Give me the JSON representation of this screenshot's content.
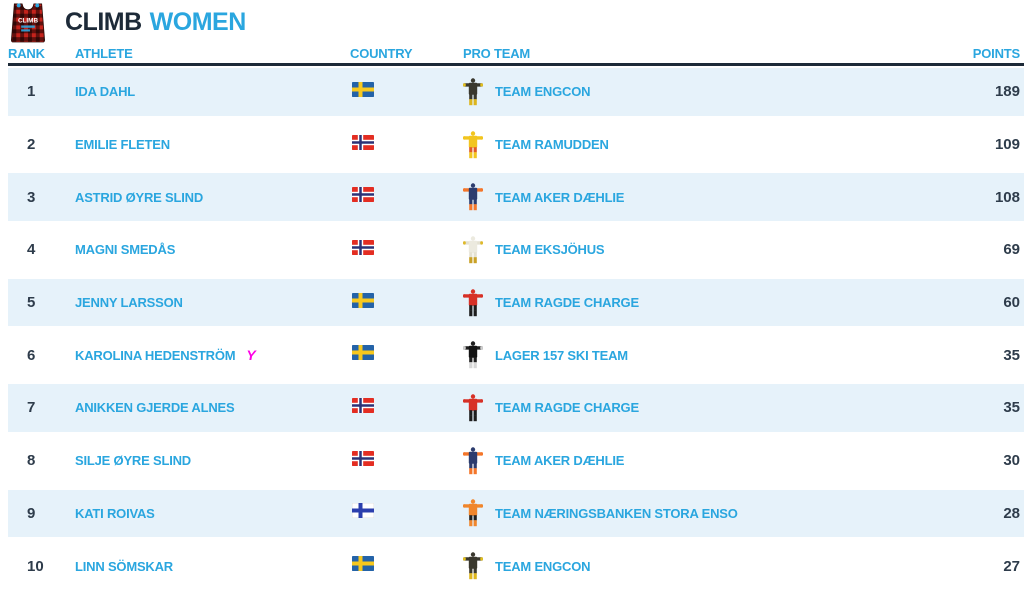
{
  "header": {
    "title_primary": "CLIMB",
    "title_secondary": "WOMEN",
    "bib_text": "CLIMB"
  },
  "columns": {
    "rank": "RANK",
    "athlete": "ATHLETE",
    "country": "COUNTRY",
    "pro_team": "PRO TEAM",
    "points": "POINTS"
  },
  "colors": {
    "accent_blue": "#2aa6df",
    "dark_navy": "#1d2a38",
    "number_slate": "#2e3c4b",
    "row_alt_bg": "#e6f2fa",
    "youth_marker_pink": "#ff00e6",
    "bib_plaid_red": "#c6231c"
  },
  "flags": {
    "SWE": {
      "bg": "#2463a8",
      "cross": "#f7c81e"
    },
    "NOR": {
      "bg": "#e32d22",
      "cross": "#ffffff",
      "inner": "#2b3277"
    },
    "FIN": {
      "bg": "#ffffff",
      "cross": "#2b3fae",
      "border": "#e3e3e3"
    }
  },
  "rows": [
    {
      "rank": "1",
      "athlete": "IDA DAHL",
      "country": "SWE",
      "team": "TEAM ENGCON",
      "points": "189",
      "suit": {
        "head": "#3a382e",
        "arms": "#3a382e",
        "hands": "#e3c01f",
        "torso": "#3a382e",
        "hips": "#3a382e",
        "legs": "#dcb51d"
      }
    },
    {
      "rank": "2",
      "athlete": "EMILIE FLETEN",
      "country": "NOR",
      "team": "TEAM RAMUDDEN",
      "points": "109",
      "suit": {
        "head": "#f2c51f",
        "arms": "#f2c51f",
        "hands": "#f2c51f",
        "torso": "#f2c51f",
        "hips": "#e05a26",
        "legs": "#f2c51f"
      }
    },
    {
      "rank": "3",
      "athlete": "ASTRID ØYRE SLIND",
      "country": "NOR",
      "team": "TEAM AKER DÆHLIE",
      "points": "108",
      "suit": {
        "head": "#2c3c6e",
        "arms": "#f4762a",
        "hands": "#f4762a",
        "torso": "#2c3c6e",
        "hips": "#2c3c6e",
        "legs": "#f4762a"
      }
    },
    {
      "rank": "4",
      "athlete": "MAGNI SMEDÅS",
      "country": "NOR",
      "team": "TEAM EKSJÖHUS",
      "points": "69",
      "suit": {
        "head": "#eceadf",
        "arms": "#e4e1d2",
        "hands": "#dfb92a",
        "torso": "#eceadf",
        "hips": "#e4e1d2",
        "legs": "#c9a126"
      }
    },
    {
      "rank": "5",
      "athlete": "JENNY LARSSON",
      "country": "SWE",
      "team": "TEAM RAGDE CHARGE",
      "points": "60",
      "suit": {
        "head": "#d73127",
        "arms": "#d73127",
        "hands": "#d73127",
        "torso": "#d73127",
        "hips": "#1d1d1d",
        "legs": "#1d1d1d"
      }
    },
    {
      "rank": "6",
      "athlete": "KAROLINA HEDENSTRÖM",
      "marker": "Y",
      "country": "SWE",
      "team": "LAGER 157 SKI TEAM",
      "points": "35",
      "suit": {
        "head": "#1f1f1f",
        "arms": "#1f1f1f",
        "hands": "#cfcfcf",
        "torso": "#141414",
        "hips": "#1f1f1f",
        "legs": "#d6d6d6"
      }
    },
    {
      "rank": "7",
      "athlete": "ANIKKEN GJERDE ALNES",
      "country": "NOR",
      "team": "TEAM RAGDE CHARGE",
      "points": "35",
      "suit": {
        "head": "#d73127",
        "arms": "#d73127",
        "hands": "#d73127",
        "torso": "#d73127",
        "hips": "#1d1d1d",
        "legs": "#1d1d1d"
      }
    },
    {
      "rank": "8",
      "athlete": "SILJE ØYRE SLIND",
      "country": "NOR",
      "team": "TEAM AKER DÆHLIE",
      "points": "30",
      "suit": {
        "head": "#2c3c6e",
        "arms": "#f4762a",
        "hands": "#f4762a",
        "torso": "#2c3c6e",
        "hips": "#2c3c6e",
        "legs": "#f4762a"
      }
    },
    {
      "rank": "9",
      "athlete": "KATI ROIVAS",
      "country": "FIN",
      "team": "TEAM NÆRINGSBANKEN STORA ENSO",
      "points": "28",
      "suit": {
        "head": "#f0862c",
        "arms": "#f0862c",
        "hands": "#f0862c",
        "torso": "#f0862c",
        "hips": "#202020",
        "legs": "#f0862c"
      }
    },
    {
      "rank": "10",
      "athlete": "LINN SÖMSKAR",
      "country": "SWE",
      "team": "TEAM ENGCON",
      "points": "27",
      "suit": {
        "head": "#3a382e",
        "arms": "#3a382e",
        "hands": "#e3c01f",
        "torso": "#3a382e",
        "hips": "#3a382e",
        "legs": "#dcb51d"
      }
    }
  ]
}
